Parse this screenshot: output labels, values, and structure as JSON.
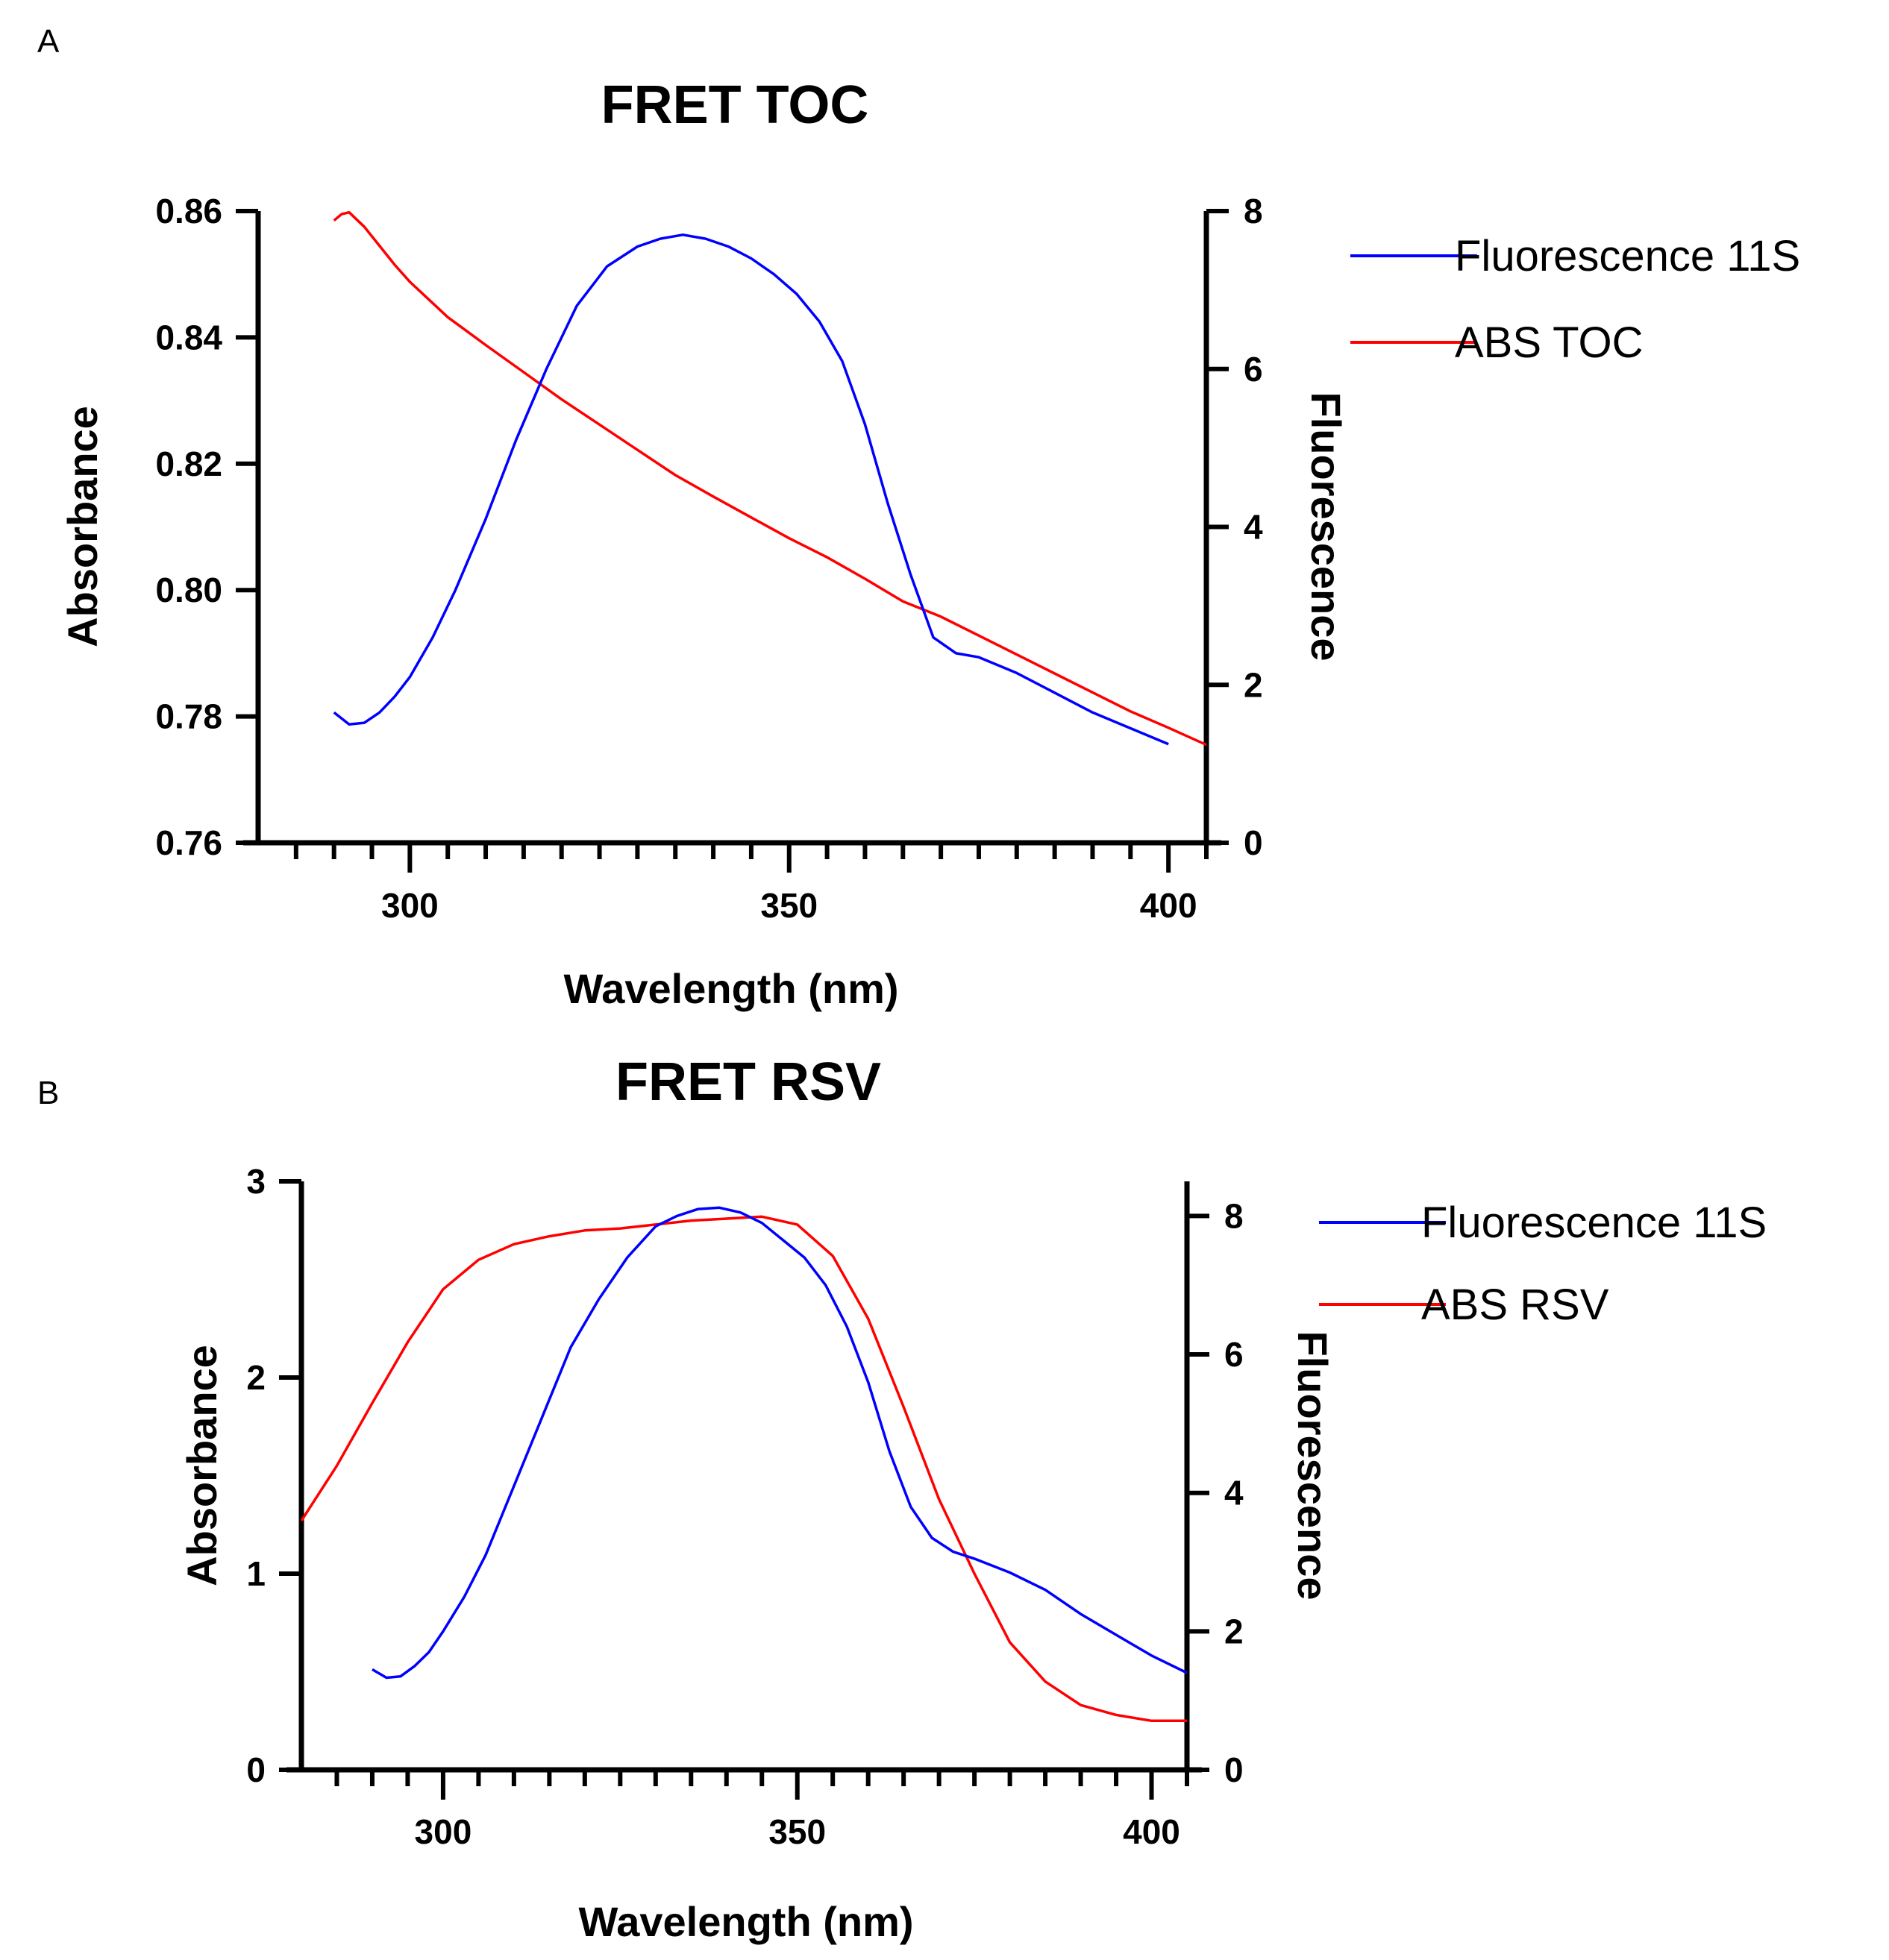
{
  "chart_data": [
    {
      "panel": "A",
      "type": "line",
      "title": "FRET TOC",
      "xlabel": "Wavelength (nm)",
      "ylabel": "Absorbance",
      "y2label": "Fluorescence",
      "xlim": [
        280,
        405
      ],
      "xticks": [
        300,
        350,
        400
      ],
      "ylim": [
        0.76,
        0.86
      ],
      "yticks": [
        0.76,
        0.78,
        0.8,
        0.82,
        0.84,
        0.86
      ],
      "ytick_labels": [
        "0.76",
        "0.78",
        "0.80",
        "0.82",
        "0.84",
        "0.86"
      ],
      "y2lim": [
        0,
        8
      ],
      "y2ticks": [
        0,
        2,
        4,
        6,
        8
      ],
      "y2tick_labels": [
        "0",
        "2",
        "4",
        "6",
        "8"
      ],
      "legend_position": "right",
      "colors": {
        "fluorescence": "#0000ff",
        "absorbance": "#ff0000"
      },
      "series": [
        {
          "name": "Fluorescence 11S",
          "axis": "right",
          "color": "#0000ff",
          "x": [
            290,
            292,
            294,
            296,
            298,
            300,
            303,
            306,
            310,
            314,
            318,
            322,
            326,
            330,
            333,
            336,
            339,
            342,
            345,
            348,
            351,
            354,
            357,
            360,
            363,
            366,
            369,
            372,
            375,
            380,
            385,
            390,
            395,
            400
          ],
          "y": [
            1.65,
            1.5,
            1.52,
            1.65,
            1.85,
            2.1,
            2.6,
            3.2,
            4.1,
            5.1,
            6.0,
            6.8,
            7.3,
            7.55,
            7.65,
            7.7,
            7.65,
            7.55,
            7.4,
            7.2,
            6.95,
            6.6,
            6.1,
            5.3,
            4.3,
            3.4,
            2.6,
            2.4,
            2.35,
            2.15,
            1.9,
            1.65,
            1.45,
            1.25
          ]
        },
        {
          "name": "ABS TOC",
          "axis": "left",
          "color": "#ff0000",
          "x": [
            290,
            291,
            292,
            294,
            296,
            298,
            300,
            305,
            310,
            315,
            320,
            325,
            330,
            335,
            340,
            345,
            350,
            355,
            360,
            365,
            370,
            375,
            380,
            385,
            390,
            395,
            400,
            405
          ],
          "y": [
            0.8585,
            0.8595,
            0.8598,
            0.8575,
            0.8545,
            0.8515,
            0.8488,
            0.8432,
            0.8388,
            0.8345,
            0.8302,
            0.8262,
            0.8222,
            0.8182,
            0.8148,
            0.8115,
            0.8082,
            0.8052,
            0.8018,
            0.7982,
            0.7958,
            0.7928,
            0.7898,
            0.7868,
            0.7838,
            0.7808,
            0.7782,
            0.7755
          ]
        }
      ]
    },
    {
      "panel": "B",
      "type": "line",
      "title": "FRET RSV",
      "xlabel": "Wavelength (nm)",
      "ylabel": "Absorbance",
      "y2label": "Fluorescence",
      "xlim": [
        280,
        405
      ],
      "xticks": [
        300,
        350,
        400
      ],
      "ylim": [
        0,
        3
      ],
      "yticks": [
        0,
        1,
        2,
        3
      ],
      "ytick_labels": [
        "0",
        "1",
        "2",
        "3"
      ],
      "y2lim": [
        0,
        8.5
      ],
      "y2ticks": [
        0,
        2,
        4,
        6,
        8
      ],
      "y2tick_labels": [
        "0",
        "2",
        "4",
        "6",
        "8"
      ],
      "legend_position": "right",
      "colors": {
        "fluorescence": "#0000ff",
        "absorbance": "#ff0000"
      },
      "series": [
        {
          "name": "Fluorescence 11S",
          "axis": "right",
          "color": "#0000ff",
          "x": [
            290,
            292,
            294,
            296,
            298,
            300,
            303,
            306,
            310,
            314,
            318,
            322,
            326,
            330,
            333,
            336,
            339,
            342,
            345,
            348,
            351,
            354,
            357,
            360,
            363,
            366,
            369,
            372,
            375,
            380,
            385,
            390,
            395,
            400,
            405
          ],
          "y": [
            1.45,
            1.33,
            1.35,
            1.5,
            1.7,
            2.0,
            2.5,
            3.1,
            4.1,
            5.1,
            6.1,
            6.8,
            7.4,
            7.85,
            8.0,
            8.1,
            8.12,
            8.05,
            7.9,
            7.65,
            7.4,
            7.0,
            6.4,
            5.6,
            4.6,
            3.8,
            3.35,
            3.15,
            3.05,
            2.85,
            2.6,
            2.25,
            1.95,
            1.65,
            1.4
          ]
        },
        {
          "name": "ABS RSV",
          "axis": "left",
          "color": "#ff0000",
          "x": [
            280,
            285,
            290,
            295,
            300,
            305,
            310,
            315,
            320,
            325,
            330,
            335,
            340,
            345,
            350,
            355,
            360,
            365,
            370,
            375,
            380,
            385,
            390,
            395,
            400,
            405
          ],
          "y": [
            1.27,
            1.55,
            1.87,
            2.18,
            2.45,
            2.6,
            2.68,
            2.72,
            2.75,
            2.76,
            2.78,
            2.8,
            2.81,
            2.82,
            2.78,
            2.62,
            2.3,
            1.85,
            1.38,
            1.0,
            0.65,
            0.45,
            0.33,
            0.28,
            0.25,
            0.25
          ]
        }
      ]
    }
  ]
}
